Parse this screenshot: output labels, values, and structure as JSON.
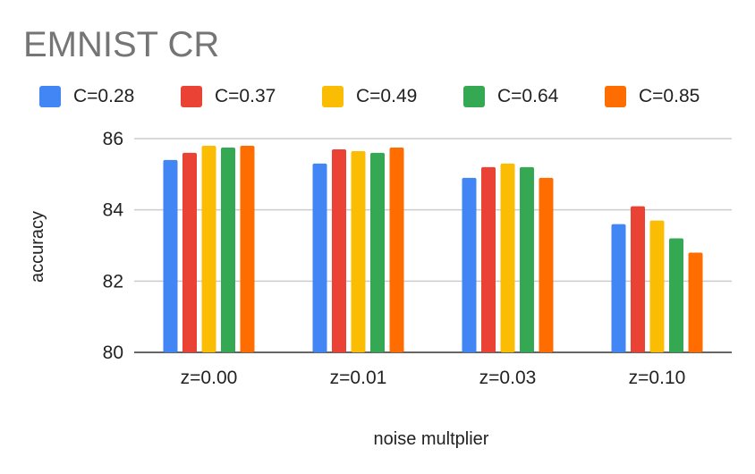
{
  "chart_data": {
    "type": "bar",
    "title": "EMNIST CR",
    "xlabel": "noise multplier",
    "ylabel": "accuracy",
    "categories": [
      "z=0.00",
      "z=0.01",
      "z=0.03",
      "z=0.10"
    ],
    "series": [
      {
        "name": "C=0.28",
        "color": "#4285F4",
        "values": [
          85.4,
          85.3,
          84.9,
          83.6
        ]
      },
      {
        "name": "C=0.37",
        "color": "#EA4335",
        "values": [
          85.6,
          85.7,
          85.2,
          84.1
        ]
      },
      {
        "name": "C=0.49",
        "color": "#FBBC04",
        "values": [
          85.8,
          85.65,
          85.3,
          83.7
        ]
      },
      {
        "name": "C=0.64",
        "color": "#34A853",
        "values": [
          85.75,
          85.6,
          85.2,
          83.2
        ]
      },
      {
        "name": "C=0.85",
        "color": "#FF6D01",
        "values": [
          85.8,
          85.75,
          84.9,
          82.8
        ]
      }
    ],
    "ylim": [
      80,
      86
    ],
    "yticks": [
      80,
      82,
      84,
      86
    ],
    "grid": true,
    "legend_position": "top"
  }
}
